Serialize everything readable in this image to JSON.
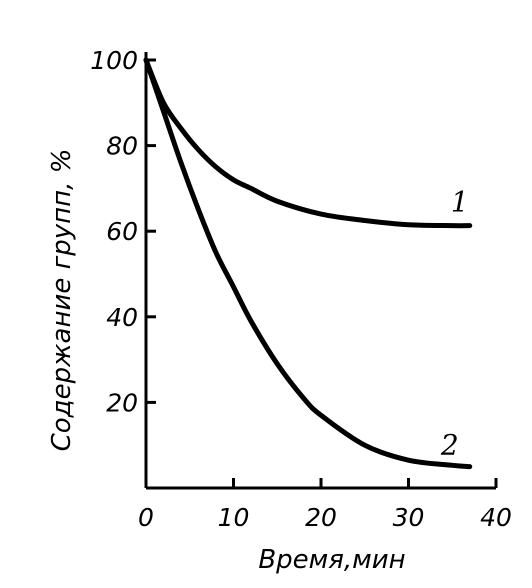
{
  "chart_data": {
    "type": "line",
    "title": "",
    "xlabel": "Время,мин",
    "ylabel": "Содержание групп, %",
    "xlim": [
      0,
      40
    ],
    "ylim": [
      0,
      100
    ],
    "grid": false,
    "x_ticks": [
      "0",
      "10",
      "20",
      "30",
      "40"
    ],
    "y_ticks": [
      "20",
      "40",
      "60",
      "80",
      "100"
    ],
    "series": [
      {
        "label": "1",
        "x": [
          0,
          2,
          4,
          6,
          8,
          10,
          12,
          15,
          20,
          25,
          30,
          35,
          37
        ],
        "y": [
          100,
          90,
          84,
          79,
          75,
          72,
          70,
          67,
          64,
          62.5,
          61.5,
          61.3,
          61.3
        ]
      },
      {
        "label": "2",
        "x": [
          0,
          2,
          4,
          6,
          8,
          10,
          12,
          15,
          18,
          20,
          25,
          30,
          35,
          37
        ],
        "y": [
          100,
          88,
          76,
          65,
          55,
          47,
          39,
          29,
          21,
          17,
          10,
          6.5,
          5.3,
          5
        ]
      }
    ]
  }
}
